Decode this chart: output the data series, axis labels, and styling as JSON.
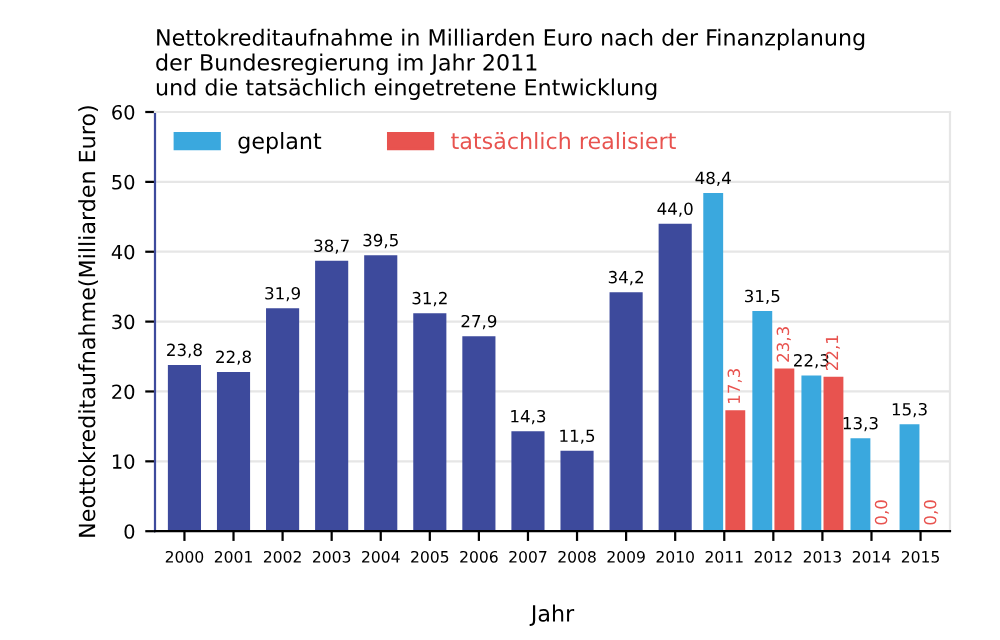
{
  "chart_data": {
    "type": "bar",
    "title": "Nettokreditaufnahme in Milliarden Euro nach der Finanzplanung\nder Bundesregierung im Jahr 2011\nund die tatsächlich eingetretene Entwicklung",
    "xlabel": "Jahr",
    "ylabel": "Neottokreditaufnahme(Milliarden Euro)",
    "categories": [
      "2000",
      "2001",
      "2002",
      "2003",
      "2004",
      "2005",
      "2006",
      "2007",
      "2008",
      "2009",
      "2010",
      "2011",
      "2012",
      "2013",
      "2014",
      "2015"
    ],
    "series": [
      {
        "color": "#3d4a9c",
        "values": [
          23.8,
          22.8,
          31.9,
          38.7,
          39.5,
          31.2,
          27.9,
          14.3,
          11.5,
          34.2,
          44.0,
          null,
          null,
          null,
          null,
          null
        ],
        "value_labels": [
          "23,8",
          "22,8",
          "31,9",
          "38,7",
          "39,5",
          "31,2",
          "27,9",
          "14,3",
          "11,5",
          "34,2",
          "44,0",
          null,
          null,
          null,
          null,
          null
        ]
      },
      {
        "name": "geplant",
        "color": "#3aa8de",
        "values": [
          null,
          null,
          null,
          null,
          null,
          null,
          null,
          null,
          null,
          null,
          null,
          48.4,
          31.5,
          22.3,
          13.3,
          15.3
        ],
        "value_labels": [
          null,
          null,
          null,
          null,
          null,
          null,
          null,
          null,
          null,
          null,
          null,
          "48,4",
          "31,5",
          "22,3",
          "13,3",
          "15,3"
        ]
      },
      {
        "name": "tatsächlich realisiert",
        "color": "#e8534f",
        "values": [
          null,
          null,
          null,
          null,
          null,
          null,
          null,
          null,
          null,
          null,
          null,
          17.3,
          23.3,
          22.1,
          0.0,
          0.0
        ],
        "value_labels": [
          null,
          null,
          null,
          null,
          null,
          null,
          null,
          null,
          null,
          null,
          null,
          "17,3",
          "23,3",
          "22,1",
          "0,0",
          "0,0"
        ]
      }
    ],
    "ylim": [
      0,
      60
    ],
    "yticks": [
      0,
      10,
      20,
      30,
      40,
      50,
      60
    ],
    "grid": "y",
    "legend": "top left"
  }
}
